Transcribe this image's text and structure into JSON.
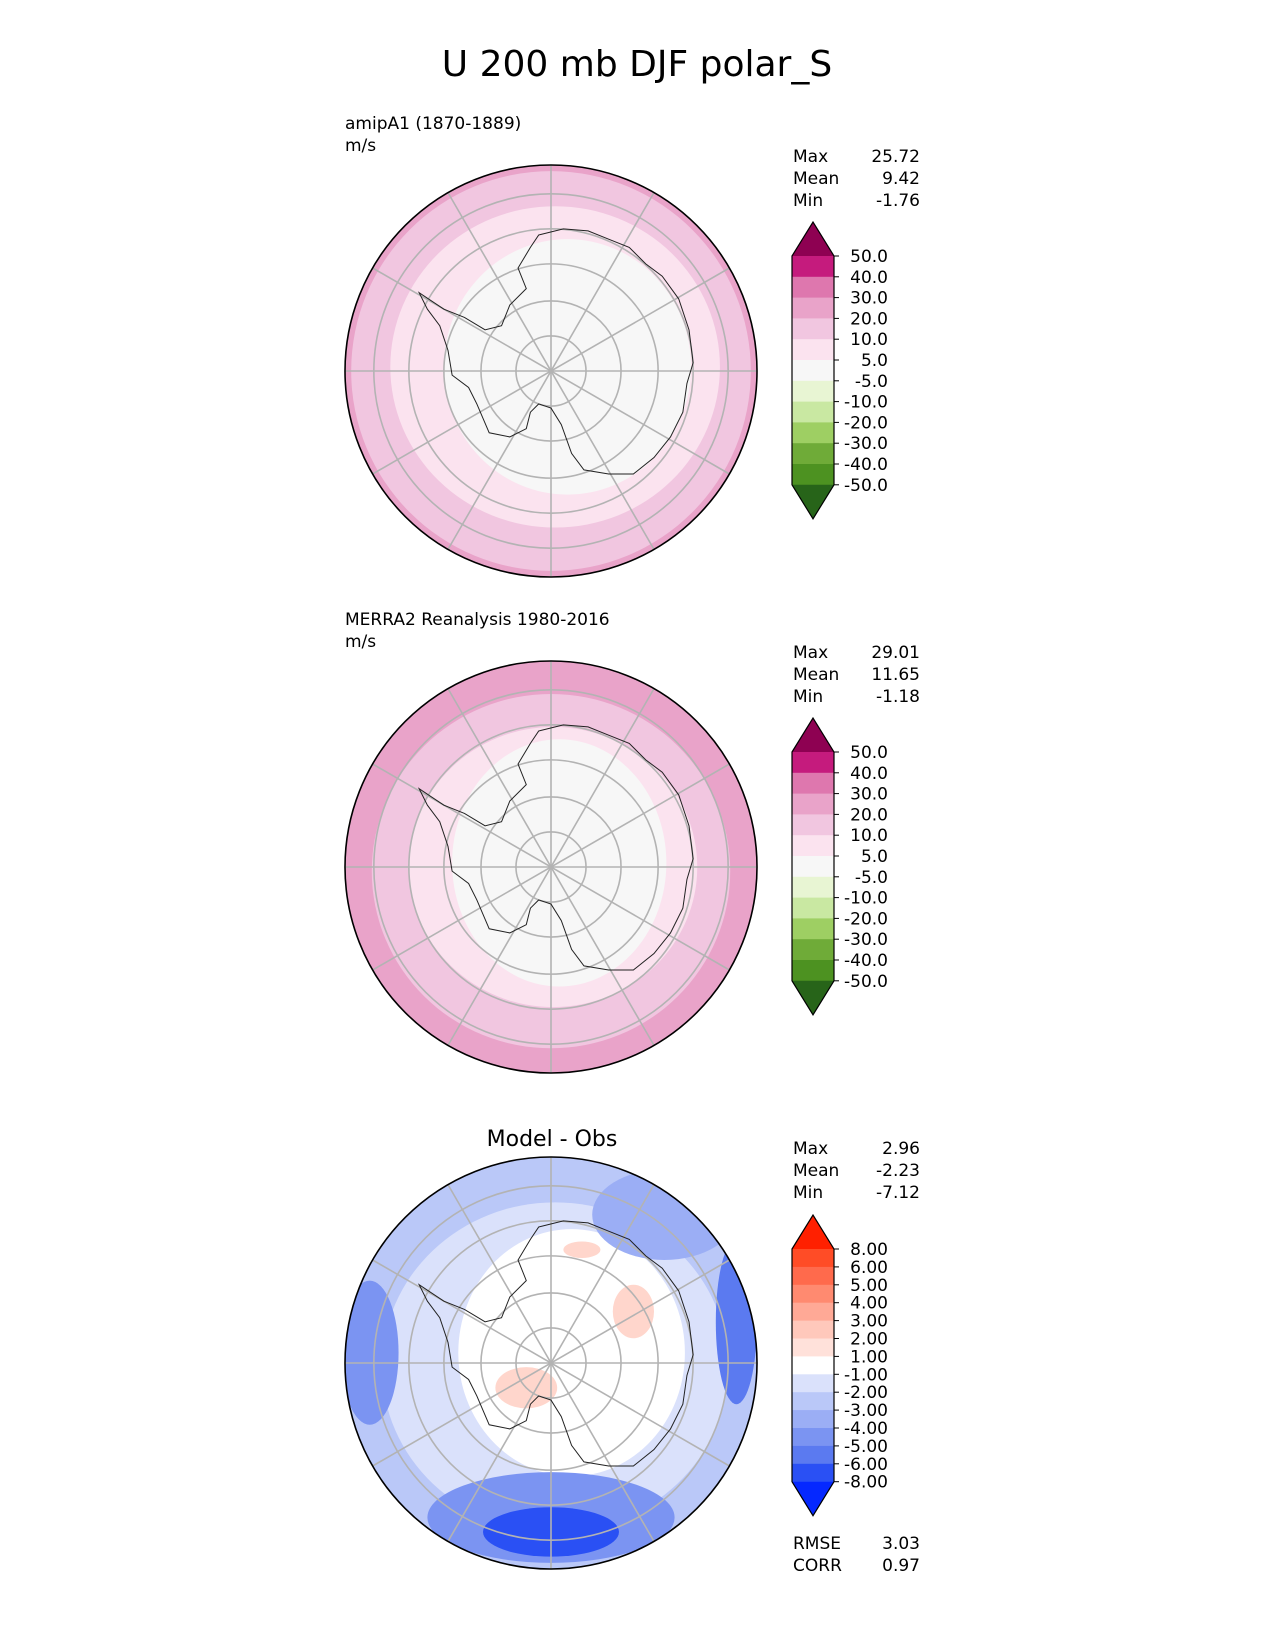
{
  "figure": {
    "title": "U 200 mb DJF polar_S"
  },
  "panels": [
    {
      "id": "test",
      "header_lines": [
        "amipA1 (1870-1889)",
        "m/s"
      ],
      "centered_title": "",
      "stats": [
        {
          "label": "Max",
          "value": "25.72"
        },
        {
          "label": "Mean",
          "value": "9.42"
        },
        {
          "label": "Min",
          "value": "-1.76"
        }
      ],
      "footer_stats": [],
      "colorbar": {
        "ticks": [
          "50.0",
          "40.0",
          "30.0",
          "20.0",
          "10.0",
          "5.0",
          "-5.0",
          "-10.0",
          "-20.0",
          "-30.0",
          "-40.0",
          "-50.0"
        ],
        "upper_color": "#8e0152",
        "lower_color": "#276419",
        "colors": [
          "#c51b7d",
          "#de77ae",
          "#e9a3c9",
          "#f1c6e0",
          "#fbe3ef",
          "#f7f7f7",
          "#e8f5d3",
          "#c9e8a2",
          "#9ecf63",
          "#6fab38",
          "#4d9221"
        ]
      },
      "rings": [
        {
          "wind": 30,
          "color": "#e9a3c9",
          "center": [
            0.0,
            0.0
          ],
          "scale": [
            1.0,
            1.0
          ]
        },
        {
          "wind": 20,
          "color": "#f1c6e0",
          "center": [
            0.0,
            0.0
          ],
          "scale": [
            0.97,
            0.97
          ]
        },
        {
          "wind": 10,
          "color": "#fbe3ef",
          "center": [
            0.02,
            0.02
          ],
          "scale": [
            0.8,
            0.78
          ]
        },
        {
          "wind": 5,
          "color": "#f7f7f7",
          "center": [
            0.08,
            0.02
          ],
          "scale": [
            0.6,
            0.62
          ]
        }
      ]
    },
    {
      "id": "reference",
      "header_lines": [
        "MERRA2 Reanalysis 1980-2016",
        "m/s"
      ],
      "centered_title": "",
      "stats": [
        {
          "label": "Max",
          "value": "29.01"
        },
        {
          "label": "Mean",
          "value": "11.65"
        },
        {
          "label": "Min",
          "value": "-1.18"
        }
      ],
      "footer_stats": [],
      "colorbar": {
        "ticks": [
          "50.0",
          "40.0",
          "30.0",
          "20.0",
          "10.0",
          "5.0",
          "-5.0",
          "-10.0",
          "-20.0",
          "-30.0",
          "-40.0",
          "-50.0"
        ],
        "upper_color": "#8e0152",
        "lower_color": "#276419",
        "colors": [
          "#c51b7d",
          "#de77ae",
          "#e9a3c9",
          "#f1c6e0",
          "#fbe3ef",
          "#f7f7f7",
          "#e8f5d3",
          "#c9e8a2",
          "#9ecf63",
          "#6fab38",
          "#4d9221"
        ]
      },
      "rings": [
        {
          "wind": 30,
          "color": "#e9a3c9",
          "center": [
            0.0,
            0.0
          ],
          "scale": [
            1.0,
            1.0
          ]
        },
        {
          "wind": 20,
          "color": "#f1c6e0",
          "center": [
            0.0,
            -0.02
          ],
          "scale": [
            0.87,
            0.86
          ]
        },
        {
          "wind": 10,
          "color": "#fbe3ef",
          "center": [
            0.01,
            0.0
          ],
          "scale": [
            0.7,
            0.68
          ]
        },
        {
          "wind": 5,
          "color": "#f7f7f7",
          "center": [
            0.04,
            0.02
          ],
          "scale": [
            0.52,
            0.6
          ]
        }
      ]
    },
    {
      "id": "difference",
      "header_lines": [],
      "centered_title": "Model - Obs",
      "stats": [
        {
          "label": "Max",
          "value": "2.96"
        },
        {
          "label": "Mean",
          "value": "-2.23"
        },
        {
          "label": "Min",
          "value": "-7.12"
        }
      ],
      "footer_stats": [
        {
          "label": "RMSE",
          "value": "3.03"
        },
        {
          "label": "CORR",
          "value": "0.97"
        }
      ],
      "colorbar": {
        "ticks": [
          "8.00",
          "6.00",
          "5.00",
          "4.00",
          "3.00",
          "2.00",
          "1.00",
          "-1.00",
          "-2.00",
          "-3.00",
          "-4.00",
          "-5.00",
          "-6.00",
          "-8.00"
        ],
        "upper_color": "#ff2000",
        "lower_color": "#0528ff",
        "colors": [
          "#ff4c26",
          "#ff6a4c",
          "#ff8a70",
          "#ffa996",
          "#ffc8bb",
          "#ffe1da",
          "#ffffff",
          "#dae1fb",
          "#bac8f8",
          "#9baef5",
          "#7b94f2",
          "#5b7af0",
          "#2a50f4"
        ]
      },
      "rings": [
        {
          "wind": -2,
          "color": "#bac8f8",
          "center": [
            0.0,
            0.0
          ],
          "scale": [
            0.98,
            0.98
          ]
        },
        {
          "wind": -1,
          "color": "#dae1fb",
          "center": [
            0.02,
            -0.02
          ],
          "scale": [
            0.84,
            0.8
          ]
        },
        {
          "wind": 1,
          "color": "#ffffff",
          "center": [
            0.1,
            0.05
          ],
          "scale": [
            0.55,
            0.6
          ]
        }
      ],
      "patches": [
        {
          "wind": -4,
          "color": "#7b94f2",
          "center": [
            0.0,
            -0.75
          ],
          "scale": [
            0.6,
            0.22
          ]
        },
        {
          "wind": -6,
          "color": "#2a50f4",
          "center": [
            0.0,
            -0.82
          ],
          "scale": [
            0.33,
            0.12
          ]
        },
        {
          "wind": -4,
          "color": "#7b94f2",
          "center": [
            -0.88,
            0.05
          ],
          "scale": [
            0.14,
            0.35
          ]
        },
        {
          "wind": -5,
          "color": "#5b7af0",
          "center": [
            0.9,
            0.2
          ],
          "scale": [
            0.1,
            0.4
          ]
        },
        {
          "wind": -3,
          "color": "#9baef5",
          "center": [
            0.55,
            0.72
          ],
          "scale": [
            0.35,
            0.22
          ]
        },
        {
          "wind": 2,
          "color": "#ffd6cc",
          "center": [
            -0.12,
            -0.12
          ],
          "scale": [
            0.15,
            0.1
          ]
        },
        {
          "wind": 2,
          "color": "#ffd6cc",
          "center": [
            0.4,
            0.25
          ],
          "scale": [
            0.1,
            0.13
          ]
        },
        {
          "wind": 2,
          "color": "#ffd6cc",
          "center": [
            0.15,
            0.55
          ],
          "scale": [
            0.09,
            0.04
          ]
        }
      ]
    }
  ]
}
